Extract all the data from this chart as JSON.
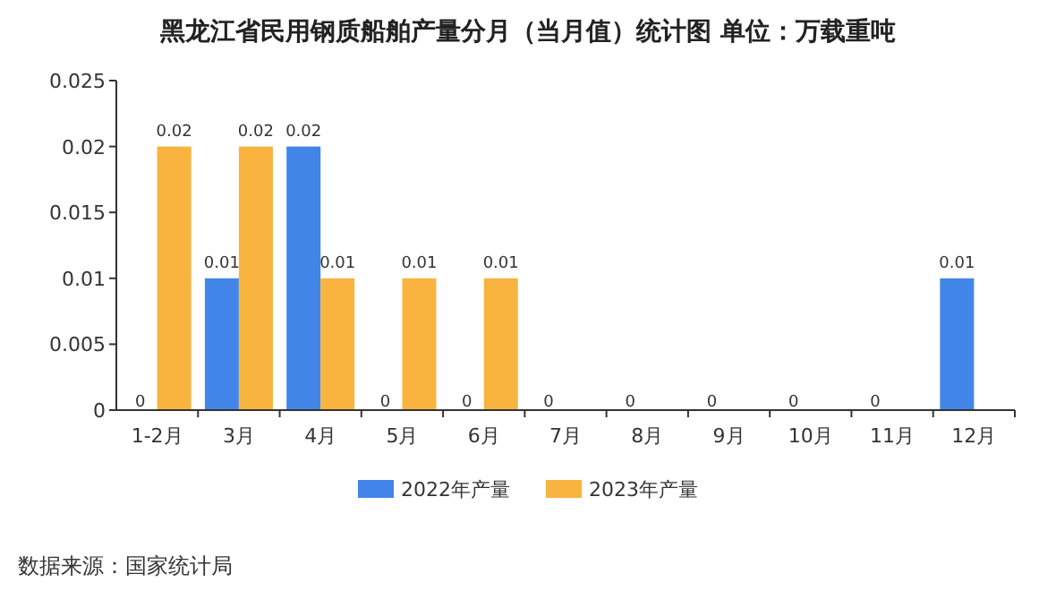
{
  "chart_data": {
    "type": "bar",
    "title": "黑龙江省民用钢质船舶产量分月（当月值）统计图  单位：万载重吨",
    "categories": [
      "1-2月",
      "3月",
      "4月",
      "5月",
      "6月",
      "7月",
      "8月",
      "9月",
      "10月",
      "11月",
      "12月"
    ],
    "series": [
      {
        "name": "2022年产量",
        "color": "#4185e8",
        "values": [
          0,
          0.01,
          0.02,
          0,
          0,
          0,
          0,
          0,
          0,
          0,
          0.01
        ]
      },
      {
        "name": "2023年产量",
        "color": "#f9b43f",
        "values": [
          0.02,
          0.02,
          0.01,
          0.01,
          0.01,
          null,
          null,
          null,
          null,
          null,
          null
        ]
      }
    ],
    "ylim": [
      0,
      0.025
    ],
    "yticks": [
      0,
      0.005,
      0.01,
      0.015,
      0.02,
      0.025
    ],
    "data_labels": true,
    "legend": "bottom",
    "annotations": [
      "数据来源：国家统计局"
    ]
  }
}
